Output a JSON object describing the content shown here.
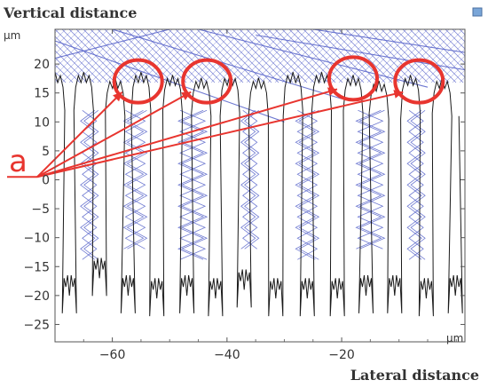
{
  "chart_data": {
    "type": "line",
    "ylabel": "Vertical distance",
    "xlabel": "Lateral distance",
    "y_unit": "µm",
    "x_unit": "µm",
    "xlim": [
      -70,
      1.5
    ],
    "ylim": [
      -28,
      26
    ],
    "x_ticks": [
      -60,
      -40,
      -20
    ],
    "y_ticks": [
      20,
      15,
      10,
      5,
      0,
      -5,
      -10,
      -15,
      -20,
      -25
    ],
    "grid": false,
    "annotation": "a",
    "colors": {
      "surface": "#1a1a1a",
      "rays": "#5561c9",
      "annotation": "#e8352f"
    },
    "features": [
      {
        "x": -70.0,
        "top": 18.0,
        "bottom": -20.0
      },
      {
        "x": -65.0,
        "top": 18.0,
        "bottom": -17.0
      },
      {
        "x": -59.5,
        "top": 17.0,
        "bottom": -20.0
      },
      {
        "x": -55.0,
        "top": 18.0,
        "bottom": -20.5
      },
      {
        "x": -49.5,
        "top": 17.5,
        "bottom": -20.0
      },
      {
        "x": -44.5,
        "top": 17.0,
        "bottom": -20.5
      },
      {
        "x": -39.5,
        "top": 17.5,
        "bottom": -19.0
      },
      {
        "x": -34.5,
        "top": 17.0,
        "bottom": -20.5
      },
      {
        "x": -28.5,
        "top": 18.0,
        "bottom": -20.5
      },
      {
        "x": -23.5,
        "top": 18.0,
        "bottom": -20.5
      },
      {
        "x": -18.0,
        "top": 17.5,
        "bottom": -20.0
      },
      {
        "x": -13.5,
        "top": 16.5,
        "bottom": -20.0
      },
      {
        "x": -8.0,
        "top": 17.5,
        "bottom": -20.5
      },
      {
        "x": -2.5,
        "top": 17.0,
        "bottom": -20.0
      }
    ],
    "highlighted_peaks": [
      {
        "x": -55.5,
        "y": 17.0
      },
      {
        "x": -43.5,
        "y": 17.0
      },
      {
        "x": -18.0,
        "y": 17.5
      },
      {
        "x": -6.5,
        "y": 17.0
      }
    ],
    "annotation_origin": {
      "x": -70.0,
      "y": 0.5
    }
  }
}
